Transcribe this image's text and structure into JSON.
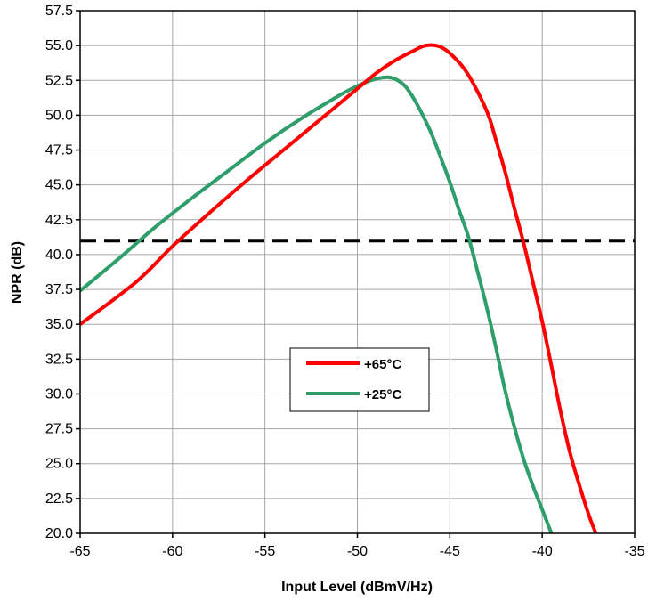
{
  "chart_data": {
    "type": "line",
    "title": "",
    "xlabel": "Input Level (dBmV/Hz)",
    "ylabel": "NPR (dB)",
    "xlim": [
      -65,
      -35
    ],
    "ylim": [
      20.0,
      57.5
    ],
    "x_ticks": [
      -65,
      -60,
      -55,
      -50,
      -45,
      -40,
      -35
    ],
    "x_tick_labels": [
      "-65",
      "-60",
      "-55",
      "-50",
      "-45",
      "-40",
      "-35"
    ],
    "y_ticks": [
      20.0,
      22.5,
      25.0,
      27.5,
      30.0,
      32.5,
      35.0,
      37.5,
      40.0,
      42.5,
      45.0,
      47.5,
      50.0,
      52.5,
      55.0,
      57.5
    ],
    "y_tick_labels": [
      "20.0",
      "22.5",
      "25.0",
      "27.5",
      "30.0",
      "32.5",
      "35.0",
      "37.5",
      "40.0",
      "42.5",
      "45.0",
      "47.5",
      "50.0",
      "52.5",
      "55.0",
      "57.5"
    ],
    "grid": true,
    "legend_position": "center",
    "reference_line": {
      "y": 41.0,
      "style": "dashed",
      "color": "#000000"
    },
    "series": [
      {
        "name": "+65°C",
        "color": "#ff0000",
        "points": [
          [
            -65,
            35.0
          ],
          [
            -62,
            38.0
          ],
          [
            -60,
            40.6
          ],
          [
            -58,
            43.0
          ],
          [
            -56,
            45.3
          ],
          [
            -54,
            47.5
          ],
          [
            -52,
            49.7
          ],
          [
            -50,
            51.9
          ],
          [
            -49,
            53.0
          ],
          [
            -48,
            53.9
          ],
          [
            -47,
            54.6
          ],
          [
            -46.3,
            55.0
          ],
          [
            -45.5,
            54.9
          ],
          [
            -44.8,
            54.2
          ],
          [
            -44,
            52.9
          ],
          [
            -43,
            50.3
          ],
          [
            -42.5,
            48.2
          ],
          [
            -42,
            45.9
          ],
          [
            -41.5,
            43.3
          ],
          [
            -41,
            40.8
          ],
          [
            -40.5,
            38.0
          ],
          [
            -40,
            35.2
          ],
          [
            -39.5,
            32.0
          ],
          [
            -39,
            28.7
          ],
          [
            -38.5,
            25.8
          ],
          [
            -38,
            23.5
          ],
          [
            -37.5,
            21.4
          ],
          [
            -37.1,
            20.0
          ]
        ]
      },
      {
        "name": "+25°C",
        "color": "#2e9e6a",
        "points": [
          [
            -65,
            37.4
          ],
          [
            -63,
            39.6
          ],
          [
            -61,
            41.9
          ],
          [
            -59,
            44.0
          ],
          [
            -57,
            46.0
          ],
          [
            -55,
            48.0
          ],
          [
            -53,
            49.8
          ],
          [
            -51,
            51.4
          ],
          [
            -50,
            52.1
          ],
          [
            -49,
            52.6
          ],
          [
            -48.2,
            52.7
          ],
          [
            -47.5,
            52.2
          ],
          [
            -47,
            51.3
          ],
          [
            -46.5,
            50.1
          ],
          [
            -46,
            48.7
          ],
          [
            -45.5,
            47.0
          ],
          [
            -45,
            45.2
          ],
          [
            -44.5,
            43.2
          ],
          [
            -44,
            41.3
          ],
          [
            -43.5,
            38.8
          ],
          [
            -43,
            36.2
          ],
          [
            -42.5,
            33.3
          ],
          [
            -42,
            30.2
          ],
          [
            -41.5,
            27.6
          ],
          [
            -41,
            25.3
          ],
          [
            -40.5,
            23.4
          ],
          [
            -40,
            21.7
          ],
          [
            -39.5,
            20.0
          ]
        ]
      }
    ]
  }
}
